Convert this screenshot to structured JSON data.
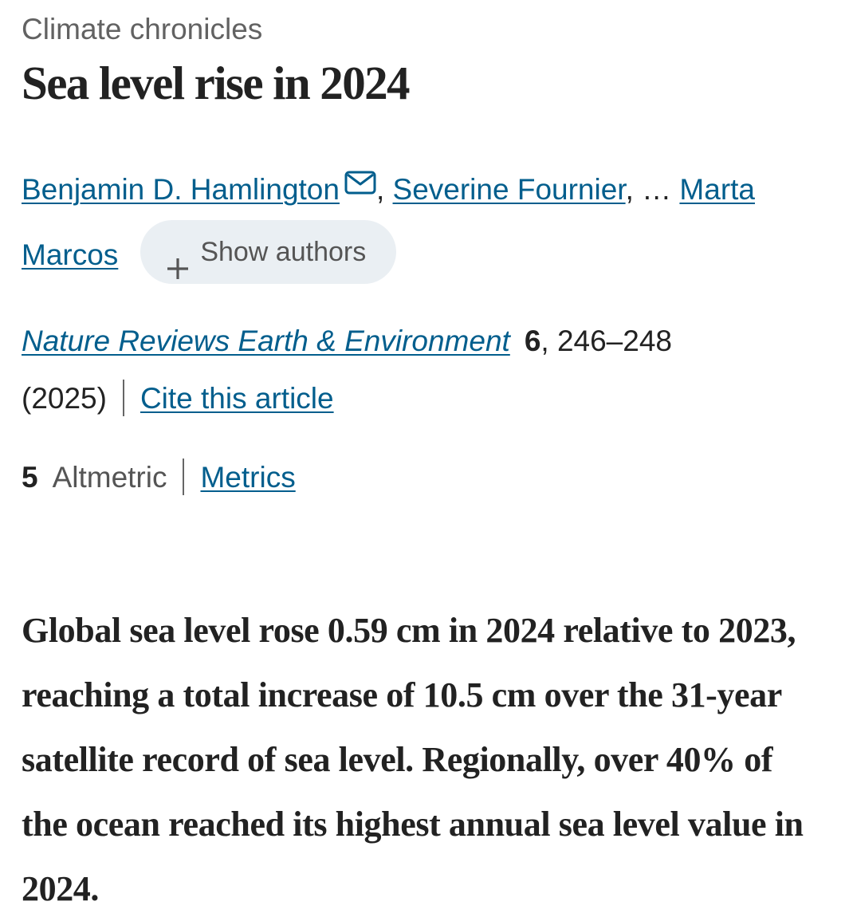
{
  "article": {
    "category": "Climate chronicles",
    "title": "Sea level rise in 2024",
    "authors": {
      "first": "Benjamin D. Hamlington",
      "comma1": ",",
      "second": "Severine Fournier",
      "ellipsis": ", …",
      "last": "Marta Marcos",
      "show_authors_label": "Show authors"
    },
    "citation": {
      "journal": "Nature Reviews Earth & Environment",
      "volume": "6",
      "pages": ", 246–248",
      "year": "(2025)",
      "cite_label": "Cite this article"
    },
    "metrics": {
      "altmetric_count": "5",
      "altmetric_label": "Altmetric",
      "metrics_label": "Metrics"
    },
    "abstract": "Global sea level rose 0.59  cm in 2024 relative to 2023, reaching a total increase of 10.5  cm over the 31-year satellite record of sea level. Regionally, over 40% of the ocean reached its highest annual sea level value in 2024."
  },
  "colors": {
    "link": "#025e8d",
    "text": "#222222",
    "muted": "#626262",
    "pill_bg": "#eaeff3"
  },
  "icons": {
    "email": "mail-icon",
    "expand": "plus-icon"
  }
}
